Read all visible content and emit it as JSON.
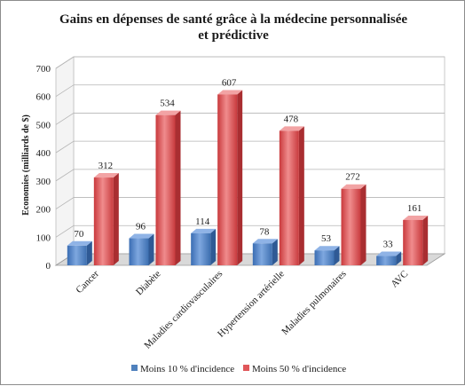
{
  "chart_data": {
    "type": "bar",
    "title_line1": "Gains en dépenses de santé grâce à la médecine personnalisée",
    "title_line2": "et prédictive",
    "ylabel": "Economies (milliards de $)",
    "xlabel": "",
    "ylim": [
      0,
      700
    ],
    "yticks": [
      0,
      100,
      200,
      300,
      400,
      500,
      600,
      700
    ],
    "grid": true,
    "legend_position": "bottom",
    "categories": [
      "Cancer",
      "Diabète",
      "Maladies cardiovasculaires",
      "Hypertension artérielle",
      "Maladies pulmonaires",
      "AVC"
    ],
    "series": [
      {
        "name": "Moins 10 % d'incidence",
        "values": [
          70,
          96,
          114,
          78,
          53,
          33
        ],
        "color": "#4f81bd"
      },
      {
        "name": "Moins 50 % d'incidence",
        "values": [
          312,
          534,
          607,
          478,
          272,
          161
        ],
        "color": "#e0575a"
      }
    ]
  }
}
